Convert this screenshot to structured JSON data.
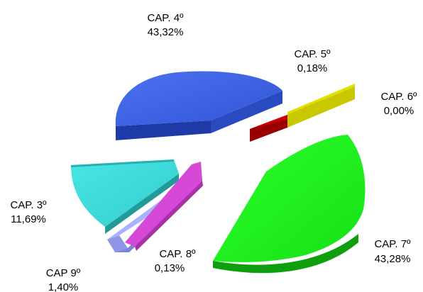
{
  "chart_data": {
    "type": "pie",
    "variant": "3d-exploded",
    "title": "",
    "legend": "none",
    "slices": [
      {
        "name": "CAP. 4º",
        "value_label": "43,32%",
        "value": 43.32,
        "color": "#3A5FE0"
      },
      {
        "name": "CAP. 5º",
        "value_label": "0,18%",
        "value": 0.18,
        "color": "#D00000"
      },
      {
        "name": "CAP. 6º",
        "value_label": "0,00%",
        "value": 0.0,
        "color": "#C8C800"
      },
      {
        "name": "CAP. 7º",
        "value_label": "43,28%",
        "value": 43.28,
        "color": "#22FF22"
      },
      {
        "name": "CAP. 8º",
        "value_label": "0,13%",
        "value": 0.13,
        "color": "#D648D6"
      },
      {
        "name": "CAP 9º",
        "value_label": "1,40%",
        "value": 1.4,
        "color": "#AAB2FF"
      },
      {
        "name": "CAP. 3º",
        "value_label": "11,69%",
        "value": 11.69,
        "color": "#3ED8D8"
      }
    ]
  }
}
